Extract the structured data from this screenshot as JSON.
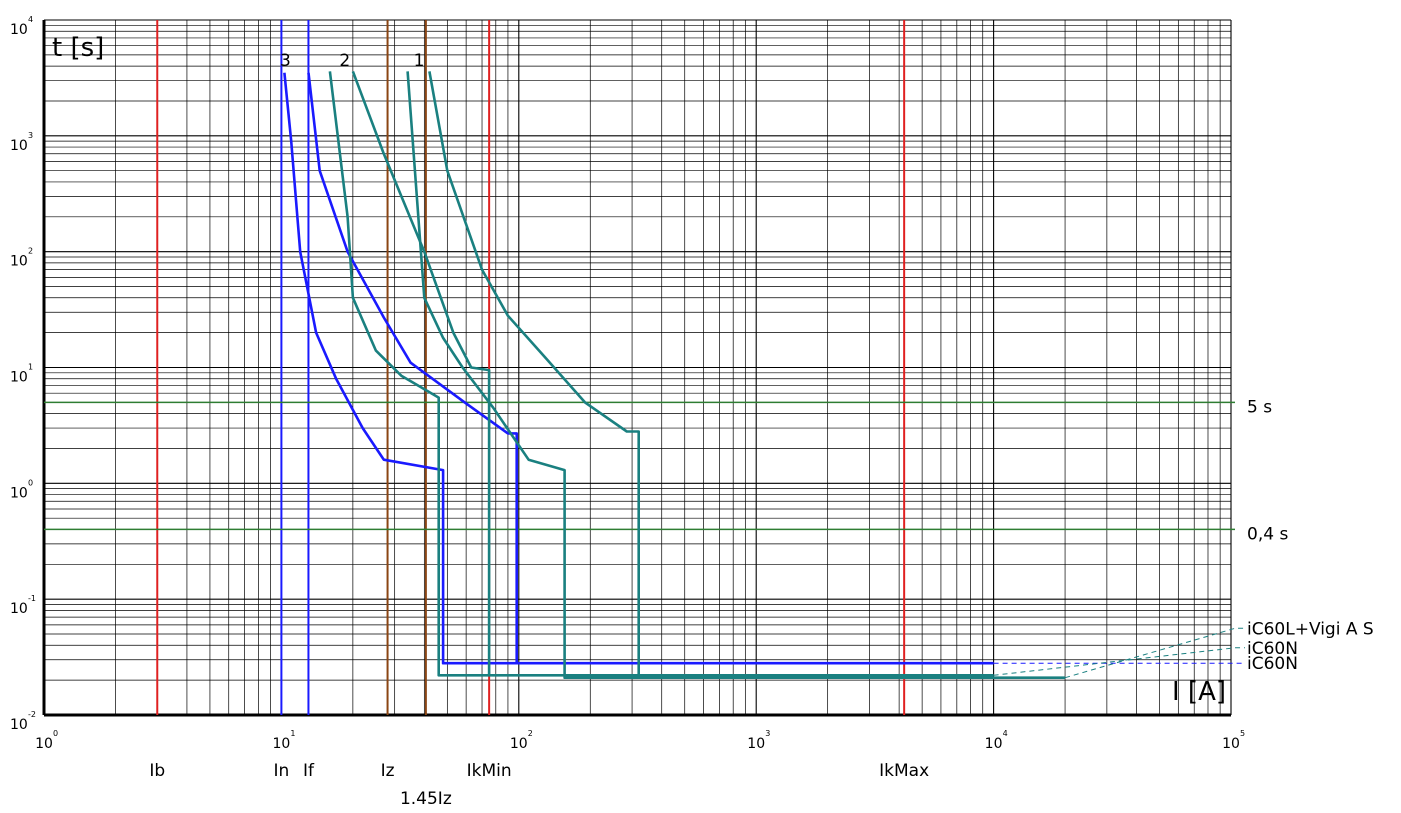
{
  "chart_data": {
    "type": "line",
    "x_scale": "log",
    "y_scale": "log",
    "xlim": [
      1,
      100000
    ],
    "ylim": [
      0.01,
      10000
    ],
    "grid": true,
    "y_axis_label": "t [s]",
    "x_axis_label": "I [A]",
    "x_ticks": [
      {
        "base": "10",
        "exp": "0",
        "value": 1
      },
      {
        "base": "10",
        "exp": "1",
        "value": 10
      },
      {
        "base": "10",
        "exp": "2",
        "value": 100
      },
      {
        "base": "10",
        "exp": "3",
        "value": 1000
      },
      {
        "base": "10",
        "exp": "4",
        "value": 10000
      },
      {
        "base": "10",
        "exp": "5",
        "value": 100000
      }
    ],
    "y_ticks": [
      {
        "base": "10",
        "exp": "4",
        "value": 10000
      },
      {
        "base": "10",
        "exp": "3",
        "value": 1000
      },
      {
        "base": "10",
        "exp": "2",
        "value": 100
      },
      {
        "base": "10",
        "exp": "1",
        "value": 10
      },
      {
        "base": "10",
        "exp": "0",
        "value": 1
      },
      {
        "base": "10",
        "exp": "-1",
        "value": 0.1
      },
      {
        "base": "10",
        "exp": "-2",
        "value": 0.01
      }
    ],
    "markers_vertical": [
      {
        "label": "Ib",
        "x": 3,
        "color": "#e02020"
      },
      {
        "label": "In",
        "x": 10,
        "color": "#1a1aff"
      },
      {
        "label": "If",
        "x": 13,
        "color": "#1a1aff"
      },
      {
        "label": "Iz",
        "x": 28,
        "color": "#8b4513"
      },
      {
        "label": "1.45Iz",
        "x": 40.6,
        "color": "#8b4513"
      },
      {
        "label": "IkMin",
        "x": 75,
        "color": "#e02020"
      },
      {
        "label": "IkMax",
        "x": 4200,
        "color": "#e02020"
      }
    ],
    "markers_horizontal": [
      {
        "label": "5 s",
        "y": 5,
        "color": "#2e7d32"
      },
      {
        "label": "0,4 s",
        "y": 0.4,
        "color": "#2e7d32"
      }
    ],
    "curve_numbers": [
      {
        "label": "3",
        "x": 10.4,
        "y": 3800
      },
      {
        "label": "2",
        "x": 18.5,
        "y": 3800
      },
      {
        "label": "1",
        "x": 38,
        "y": 3800
      }
    ],
    "series": [
      {
        "name": "iC60N",
        "color": "#1a1aff",
        "legend_y": 0.028,
        "legend_style": "dashed",
        "points_left": [
          [
            10.3,
            3500
          ],
          [
            11,
            900
          ],
          [
            12,
            100
          ],
          [
            14,
            20
          ],
          [
            17,
            8
          ],
          [
            22,
            3
          ],
          [
            27,
            1.6
          ],
          [
            48,
            1.3
          ],
          [
            48,
            0.028
          ],
          [
            10000,
            0.028
          ]
        ],
        "points_right": [
          [
            13,
            3500
          ],
          [
            14.5,
            500
          ],
          [
            19,
            100
          ],
          [
            27,
            27
          ],
          [
            35,
            11
          ],
          [
            60,
            4.9
          ],
          [
            90,
            2.7
          ],
          [
            98,
            2.7
          ],
          [
            98,
            0.028
          ]
        ]
      },
      {
        "name": "iC60N",
        "color": "#1a8080",
        "legend_y": 0.038,
        "legend_style": "dashed",
        "points_left": [
          [
            16,
            3600
          ],
          [
            19,
            200
          ],
          [
            20,
            40
          ],
          [
            25,
            14
          ],
          [
            32,
            8.5
          ],
          [
            46,
            5.5
          ],
          [
            46,
            0.022
          ],
          [
            10000,
            0.022
          ]
        ],
        "points_right": [
          [
            20,
            3600
          ],
          [
            27,
            700
          ],
          [
            40,
            100
          ],
          [
            53,
            20
          ],
          [
            63,
            10
          ],
          [
            75,
            9.5
          ],
          [
            75,
            0.022
          ]
        ]
      },
      {
        "name": "iC60L+Vigi A S",
        "color": "#1a8080",
        "legend_y": 0.056,
        "legend_style": "dashed",
        "points_left": [
          [
            34,
            3600
          ],
          [
            40,
            40
          ],
          [
            48,
            18
          ],
          [
            58,
            10
          ],
          [
            78,
            4.5
          ],
          [
            110,
            1.6
          ],
          [
            156,
            1.3
          ],
          [
            156,
            0.021
          ],
          [
            20000,
            0.021
          ]
        ],
        "points_right": [
          [
            42,
            3600
          ],
          [
            50,
            500
          ],
          [
            70,
            70
          ],
          [
            90,
            28
          ],
          [
            130,
            12
          ],
          [
            190,
            5
          ],
          [
            285,
            2.8
          ],
          [
            320,
            2.8
          ],
          [
            320,
            0.021
          ]
        ]
      }
    ]
  }
}
